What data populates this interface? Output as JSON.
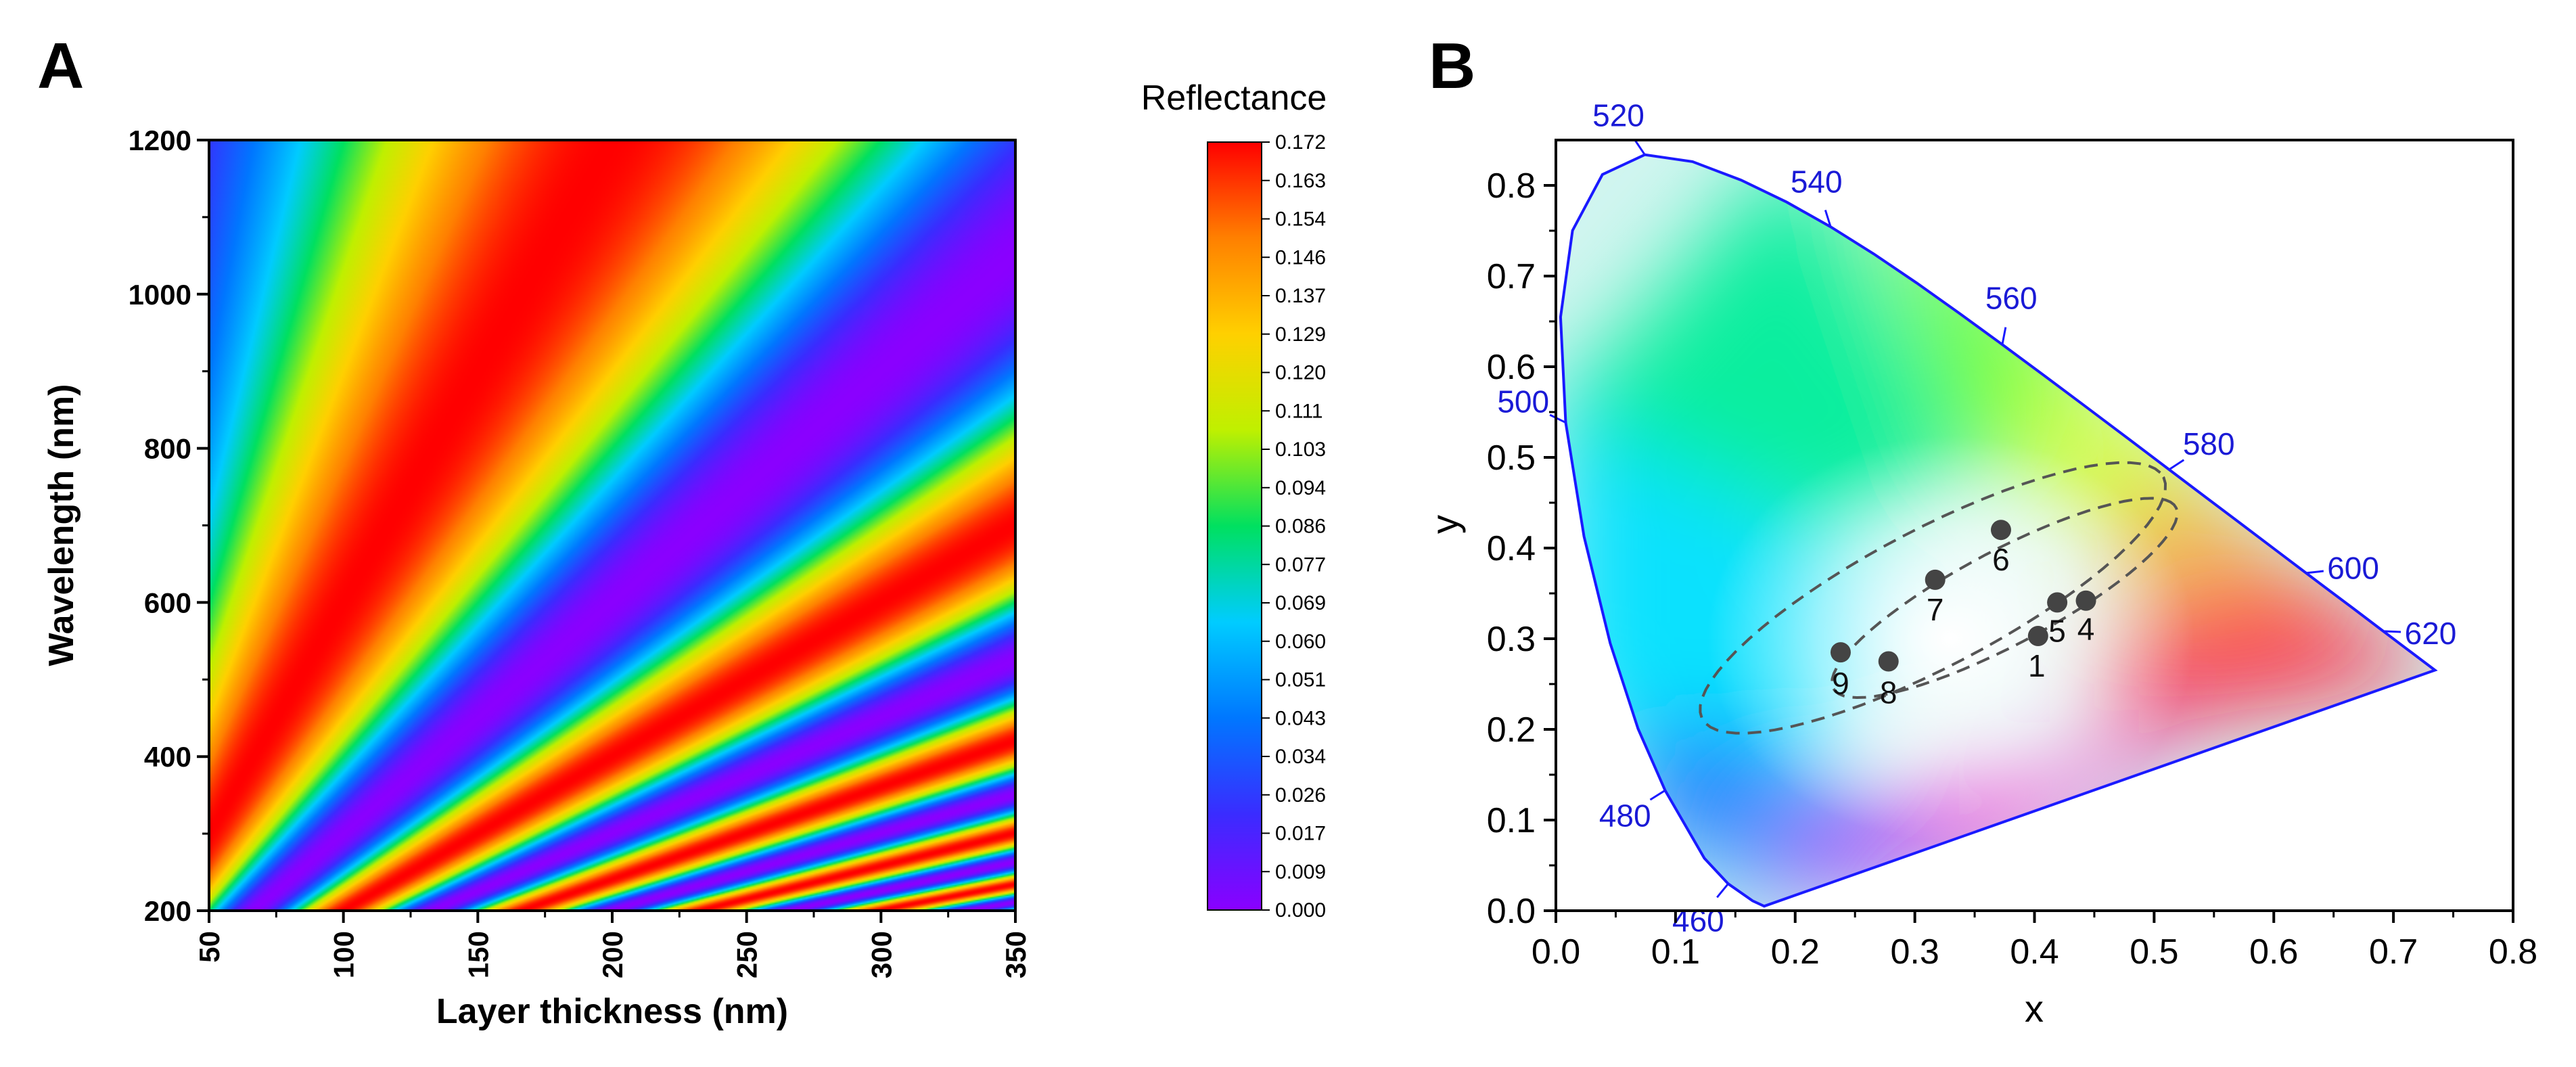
{
  "panels": {
    "a": "A",
    "b": "B"
  },
  "chart_data": [
    {
      "type": "heatmap",
      "title": "",
      "xlabel": "Layer thickness (nm)",
      "ylabel": "Wavelength (nm)",
      "xlim": [
        50,
        350
      ],
      "ylim": [
        200,
        1200
      ],
      "xticks": [
        "50",
        "100",
        "150",
        "200",
        "250",
        "300",
        "350"
      ],
      "yticks": [
        "200",
        "400",
        "600",
        "800",
        "1000",
        "1200"
      ],
      "colorbar": {
        "title": "Reflectance",
        "range": [
          0.0,
          0.172
        ],
        "ticks": [
          "0.000",
          "0.009",
          "0.017",
          "0.026",
          "0.034",
          "0.043",
          "0.051",
          "0.060",
          "0.069",
          "0.077",
          "0.086",
          "0.094",
          "0.103",
          "0.111",
          "0.120",
          "0.129",
          "0.137",
          "0.146",
          "0.154",
          "0.163",
          "0.172"
        ],
        "colormap": [
          "#8a00ff",
          "#3a2cff",
          "#0077ff",
          "#00ccff",
          "#00e060",
          "#bff000",
          "#ffd000",
          "#ff8000",
          "#ff0000"
        ]
      }
    },
    {
      "type": "scatter",
      "title": "",
      "xlabel": "x",
      "ylabel": "y",
      "xlim": [
        0.0,
        0.8
      ],
      "ylim": [
        0.0,
        0.85
      ],
      "xticks": [
        "0.0",
        "0.1",
        "0.2",
        "0.3",
        "0.4",
        "0.5",
        "0.6",
        "0.7",
        "0.8"
      ],
      "yticks": [
        "0.0",
        "0.1",
        "0.2",
        "0.3",
        "0.4",
        "0.5",
        "0.6",
        "0.7",
        "0.8"
      ],
      "spectral_locus": [
        [
          0.1741,
          0.005
        ],
        [
          0.1644,
          0.0109
        ],
        [
          0.144,
          0.0297
        ],
        [
          0.1241,
          0.0578
        ],
        [
          0.0913,
          0.1327
        ],
        [
          0.0687,
          0.2007
        ],
        [
          0.0454,
          0.295
        ],
        [
          0.0235,
          0.4127
        ],
        [
          0.0082,
          0.5384
        ],
        [
          0.0039,
          0.6548
        ],
        [
          0.0139,
          0.7502
        ],
        [
          0.0389,
          0.812
        ],
        [
          0.0743,
          0.8338
        ],
        [
          0.1142,
          0.8262
        ],
        [
          0.1547,
          0.8059
        ],
        [
          0.1929,
          0.7816
        ],
        [
          0.2296,
          0.7543
        ],
        [
          0.2658,
          0.7243
        ],
        [
          0.3016,
          0.6923
        ],
        [
          0.3373,
          0.6589
        ],
        [
          0.3731,
          0.6245
        ],
        [
          0.4087,
          0.5896
        ],
        [
          0.4441,
          0.5547
        ],
        [
          0.4788,
          0.5202
        ],
        [
          0.5125,
          0.4866
        ],
        [
          0.5448,
          0.4544
        ],
        [
          0.5752,
          0.4242
        ],
        [
          0.6029,
          0.3965
        ],
        [
          0.627,
          0.3725
        ],
        [
          0.6482,
          0.3514
        ],
        [
          0.6658,
          0.334
        ],
        [
          0.6915,
          0.3083
        ],
        [
          0.714,
          0.2859
        ],
        [
          0.7347,
          0.2653
        ]
      ],
      "wavelength_labels": [
        {
          "text": "460",
          "x": 0.144,
          "y": 0.0297
        },
        {
          "text": "480",
          "x": 0.0913,
          "y": 0.1327
        },
        {
          "text": "500",
          "x": 0.0082,
          "y": 0.5384
        },
        {
          "text": "520",
          "x": 0.0743,
          "y": 0.8338
        },
        {
          "text": "540",
          "x": 0.2296,
          "y": 0.7543
        },
        {
          "text": "560",
          "x": 0.3731,
          "y": 0.6245
        },
        {
          "text": "580",
          "x": 0.5125,
          "y": 0.4866
        },
        {
          "text": "600",
          "x": 0.627,
          "y": 0.3725
        },
        {
          "text": "620",
          "x": 0.6915,
          "y": 0.3083
        }
      ],
      "points": [
        {
          "label": "1",
          "x": 0.403,
          "y": 0.303
        },
        {
          "label": "4",
          "x": 0.443,
          "y": 0.342
        },
        {
          "label": "5",
          "x": 0.419,
          "y": 0.34
        },
        {
          "label": "6",
          "x": 0.372,
          "y": 0.42
        },
        {
          "label": "7",
          "x": 0.317,
          "y": 0.365
        },
        {
          "label": "8",
          "x": 0.278,
          "y": 0.275
        },
        {
          "label": "9",
          "x": 0.238,
          "y": 0.285
        }
      ],
      "ellipses": [
        {
          "cx": 0.315,
          "cy": 0.345,
          "rx": 0.235,
          "ry": 0.07,
          "angle_deg": 36
        },
        {
          "cx": 0.375,
          "cy": 0.345,
          "rx": 0.175,
          "ry": 0.048,
          "angle_deg": 36
        }
      ],
      "colors": {
        "locus_stroke": "#1a1aff",
        "wavelength_label": "#1a1ad6",
        "point": "#444444",
        "ellipse": "#555555"
      }
    }
  ]
}
